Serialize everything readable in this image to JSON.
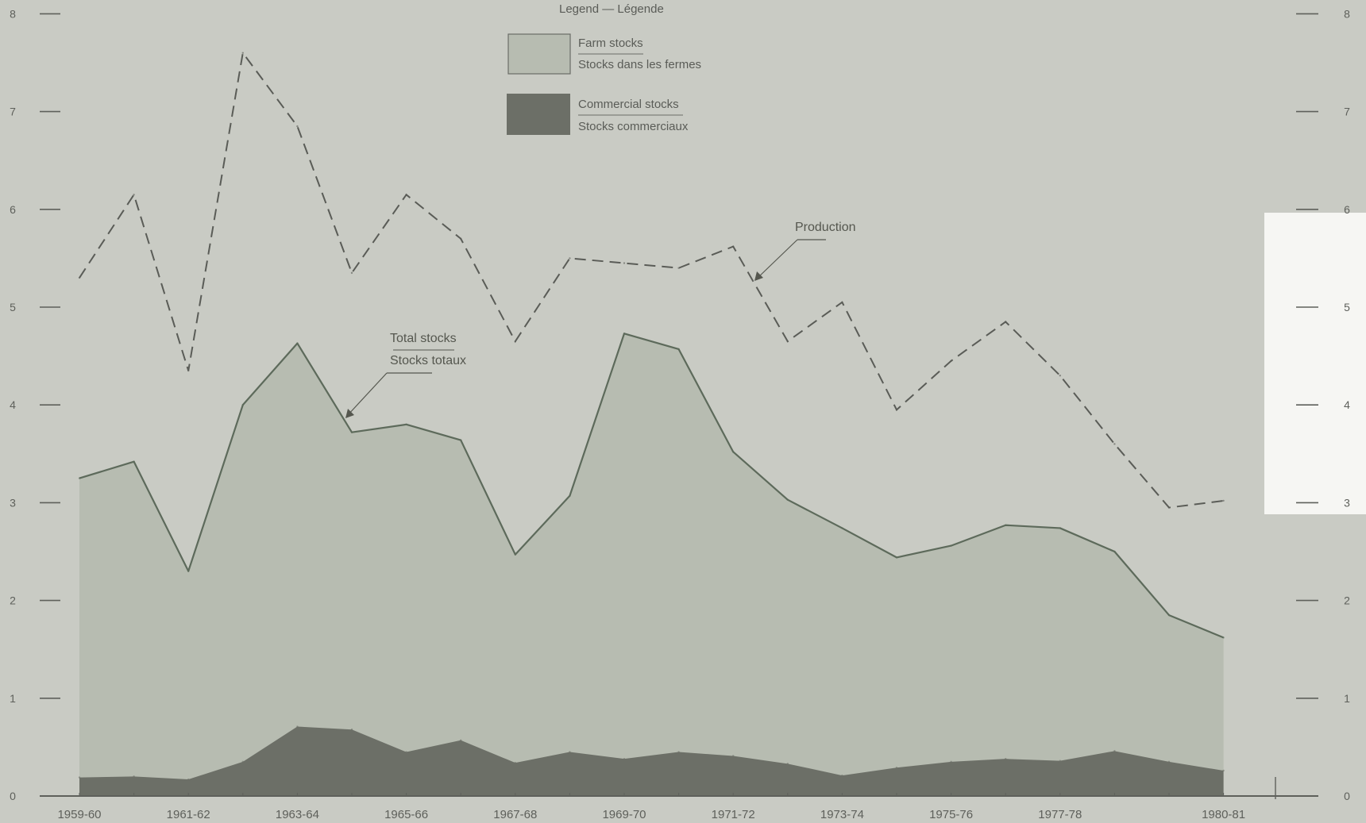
{
  "chart_data": {
    "type": "area",
    "categories": [
      "1959-60",
      "1960-61",
      "1961-62",
      "1962-63",
      "1963-64",
      "1964-65",
      "1965-66",
      "1966-67",
      "1967-68",
      "1968-69",
      "1969-70",
      "1970-71",
      "1971-72",
      "1972-73",
      "1973-74",
      "1974-75",
      "1975-76",
      "1976-77",
      "1977-78",
      "1978-79",
      "1979-80",
      "1980-81"
    ],
    "x_tick_labels": [
      "1959-60",
      "1961-62",
      "1963-64",
      "1965-66",
      "1967-68",
      "1969-70",
      "1971-72",
      "1973-74",
      "1975-76",
      "1977-78",
      "1980-81"
    ],
    "x_tick_label_categories": [
      "1959-60",
      "1961-62",
      "1963-64",
      "1965-66",
      "1967-68",
      "1969-70",
      "1971-72",
      "1973-74",
      "1975-76",
      "1977-78",
      "1980-81"
    ],
    "series": [
      {
        "name": "Production",
        "style": "dashed-line",
        "color": "#5a5c57",
        "values": [
          5.3,
          6.15,
          4.35,
          7.6,
          6.85,
          5.35,
          6.15,
          5.7,
          4.65,
          5.5,
          5.45,
          5.4,
          5.62,
          4.65,
          5.05,
          3.95,
          4.45,
          4.85,
          4.3,
          3.6,
          2.95,
          3.02
        ]
      },
      {
        "name": "Total stocks",
        "style": "line-over-area",
        "color": "#5d6a5b",
        "values": [
          3.25,
          3.42,
          2.3,
          4.0,
          4.63,
          3.72,
          3.8,
          3.64,
          2.47,
          3.07,
          4.73,
          4.57,
          3.52,
          3.03,
          2.74,
          2.44,
          2.56,
          2.77,
          2.74,
          2.5,
          1.85,
          1.62
        ]
      },
      {
        "name": "Commercial stocks",
        "style": "area",
        "color": "#6c6f67",
        "values": [
          0.19,
          0.2,
          0.17,
          0.35,
          0.71,
          0.68,
          0.45,
          0.57,
          0.34,
          0.45,
          0.38,
          0.45,
          0.41,
          0.33,
          0.21,
          0.29,
          0.35,
          0.38,
          0.36,
          0.46,
          0.35,
          0.26
        ]
      }
    ],
    "farm_stocks_color": "#b7bcb1",
    "ylim": [
      0,
      8
    ],
    "yticks": [
      0,
      1,
      2,
      3,
      4,
      5,
      6,
      7,
      8
    ],
    "grid": false,
    "legend": {
      "title": "Legend — Légende",
      "placement": "top-center",
      "items": [
        {
          "label_en": "Farm stocks",
          "label_fr": "Stocks dans les fermes",
          "color": "#b7bcb1"
        },
        {
          "label_en": "Commercial stocks",
          "label_fr": "Stocks commerciaux",
          "color": "#6c6f67"
        }
      ]
    },
    "annotations": {
      "production": "Production",
      "total_stocks_en": "Total stocks",
      "total_stocks_fr": "Stocks totaux"
    },
    "colors": {
      "background": "#c9cbc4",
      "axis": "#5e605b"
    }
  }
}
